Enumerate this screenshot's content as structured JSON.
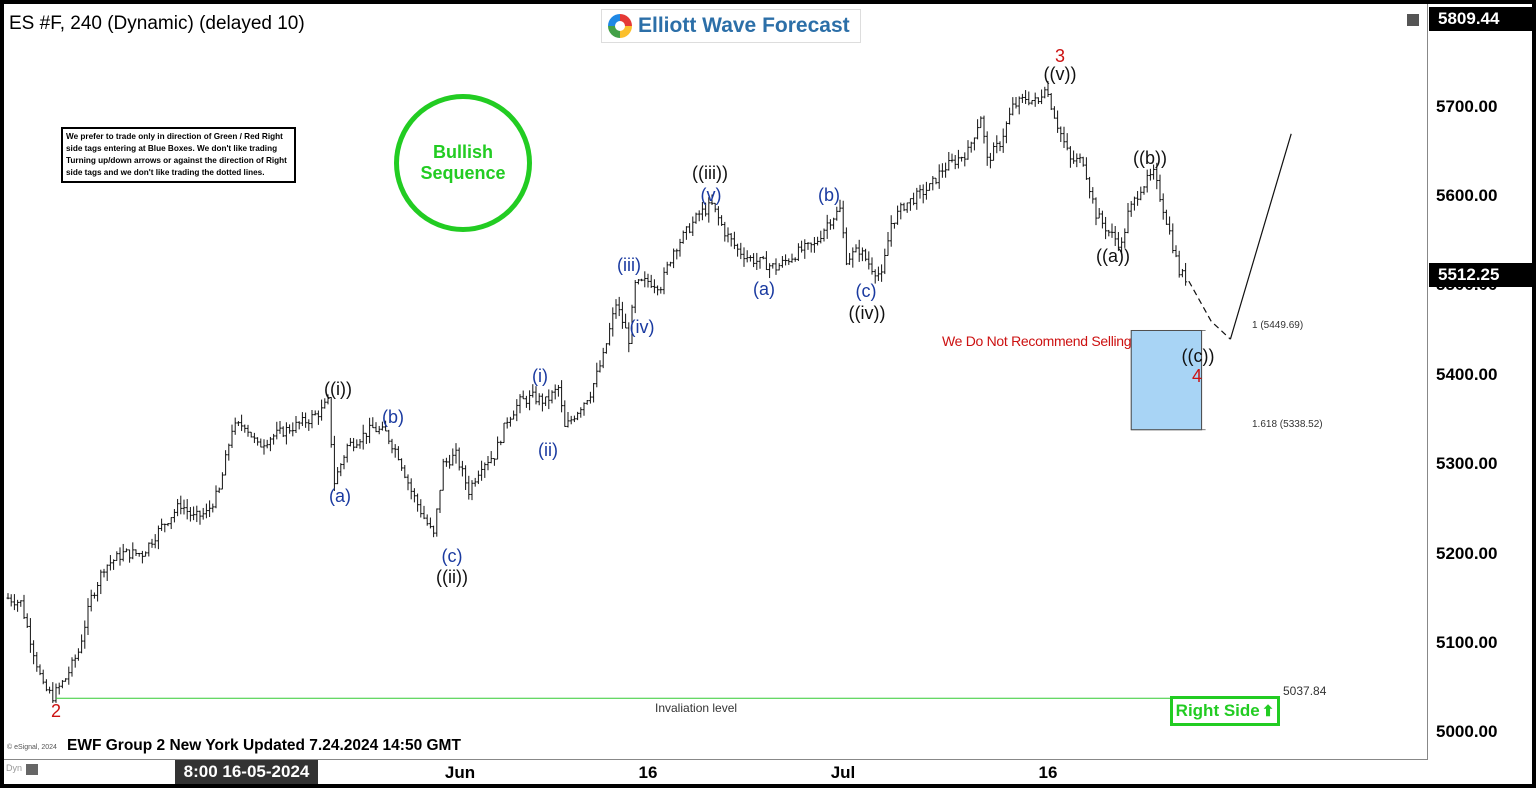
{
  "header": {
    "symbol_title": "ES #F, 240 (Dynamic) (delayed 10)",
    "logo_text": "Elliott Wave Forecast",
    "top_price": "5809.44",
    "last_price": "5512.25"
  },
  "disclaimer": "We prefer to trade only in direction of Green / Red Right side tags entering at Blue Boxes. We don't like trading Turning up/down arrows or against the direction of Right side tags and we don't like trading the dotted lines.",
  "bullish_badge": {
    "line1": "Bullish",
    "line2": "Sequence",
    "color": "#22cc22"
  },
  "no_sell_text": "We Do Not Recommend Selling",
  "fib_labels": {
    "upper": "1 (5449.69)",
    "lower": "1.618 (5338.52)"
  },
  "invalidation": {
    "label": "Invaliation level",
    "value": "5037.84"
  },
  "right_side_tag": {
    "text": "Right Side",
    "arrow": "⬆",
    "color": "#22cc22"
  },
  "footer": {
    "group_text": "EWF Group 2 New York Updated 7.24.2024 14:50 GMT",
    "esignal": "© eSignal, 2024",
    "dyn": "Dyn",
    "time_cursor": "8:00 16-05-2024"
  },
  "wave_labels": {
    "w2": "2",
    "w3": "3",
    "w4": "4",
    "i_big": "((i))",
    "ii_big": "((ii))",
    "iii_big": "((iii))",
    "iv_big": "((iv))",
    "v_big": "((v))",
    "a_big": "((a))",
    "b_big": "((b))",
    "c_big": "((c))",
    "a1": "(a)",
    "b1": "(b)",
    "c1": "(c)",
    "i_small": "(i)",
    "ii_small": "(ii)",
    "iii_small": "(iii)",
    "iv_small": "(iv)",
    "v_small": "(v)",
    "a2": "(a)",
    "b2": "(b)",
    "c2": "(c)"
  },
  "chart_data": {
    "type": "bar",
    "symbol": "ES #F",
    "timeframe": "240",
    "x_ticks": [
      "Jun",
      "16",
      "Jul",
      "16"
    ],
    "y_ticks": [
      "5700.00",
      "5600.00",
      "5500.00",
      "5400.00",
      "5300.00",
      "5200.00",
      "5100.00",
      "5000.00"
    ],
    "ylim": [
      4970,
      5820
    ],
    "price_path": [
      [
        0,
        5150
      ],
      [
        4,
        5145
      ],
      [
        8,
        5090
      ],
      [
        11,
        5050
      ],
      [
        14,
        5040
      ],
      [
        18,
        5060
      ],
      [
        22,
        5090
      ],
      [
        26,
        5150
      ],
      [
        30,
        5185
      ],
      [
        36,
        5200
      ],
      [
        42,
        5200
      ],
      [
        48,
        5230
      ],
      [
        54,
        5255
      ],
      [
        58,
        5240
      ],
      [
        62,
        5245
      ],
      [
        66,
        5270
      ],
      [
        70,
        5340
      ],
      [
        74,
        5345
      ],
      [
        78,
        5320
      ],
      [
        82,
        5330
      ],
      [
        88,
        5340
      ],
      [
        94,
        5350
      ],
      [
        98,
        5360
      ],
      [
        100,
        5370
      ],
      [
        102,
        5280
      ],
      [
        106,
        5320
      ],
      [
        110,
        5330
      ],
      [
        114,
        5340
      ],
      [
        118,
        5335
      ],
      [
        122,
        5310
      ],
      [
        126,
        5270
      ],
      [
        130,
        5240
      ],
      [
        133,
        5220
      ],
      [
        136,
        5300
      ],
      [
        140,
        5310
      ],
      [
        144,
        5270
      ],
      [
        148,
        5300
      ],
      [
        152,
        5310
      ],
      [
        156,
        5350
      ],
      [
        160,
        5370
      ],
      [
        164,
        5375
      ],
      [
        168,
        5370
      ],
      [
        172,
        5385
      ],
      [
        174,
        5340
      ],
      [
        178,
        5360
      ],
      [
        182,
        5380
      ],
      [
        186,
        5420
      ],
      [
        190,
        5480
      ],
      [
        194,
        5440
      ],
      [
        196,
        5500
      ],
      [
        200,
        5505
      ],
      [
        204,
        5500
      ],
      [
        208,
        5540
      ],
      [
        212,
        5560
      ],
      [
        216,
        5580
      ],
      [
        220,
        5590
      ],
      [
        224,
        5560
      ],
      [
        228,
        5540
      ],
      [
        232,
        5530
      ],
      [
        236,
        5525
      ],
      [
        240,
        5520
      ],
      [
        244,
        5530
      ],
      [
        248,
        5540
      ],
      [
        252,
        5545
      ],
      [
        256,
        5570
      ],
      [
        260,
        5585
      ],
      [
        262,
        5530
      ],
      [
        266,
        5540
      ],
      [
        270,
        5520
      ],
      [
        273,
        5510
      ],
      [
        276,
        5570
      ],
      [
        280,
        5590
      ],
      [
        284,
        5600
      ],
      [
        288,
        5610
      ],
      [
        292,
        5630
      ],
      [
        296,
        5640
      ],
      [
        300,
        5650
      ],
      [
        304,
        5690
      ],
      [
        306,
        5640
      ],
      [
        310,
        5660
      ],
      [
        314,
        5700
      ],
      [
        318,
        5710
      ],
      [
        322,
        5705
      ],
      [
        324,
        5725
      ],
      [
        328,
        5680
      ],
      [
        332,
        5640
      ],
      [
        336,
        5640
      ],
      [
        340,
        5580
      ],
      [
        344,
        5560
      ],
      [
        348,
        5545
      ],
      [
        350,
        5580
      ],
      [
        354,
        5610
      ],
      [
        358,
        5625
      ],
      [
        360,
        5600
      ],
      [
        363,
        5560
      ],
      [
        366,
        5515
      ],
      [
        369,
        5505
      ]
    ],
    "projection_path": [
      [
        369,
        5505
      ],
      [
        376,
        5460
      ],
      [
        382,
        5440
      ]
    ],
    "projection_up": [
      [
        382,
        5440
      ],
      [
        401,
        5670
      ]
    ],
    "blue_box": {
      "x_from": 351,
      "x_to": 373,
      "y_top": 5449.69,
      "y_bottom": 5338.52
    },
    "invalidation_level": 5037.84,
    "fib_levels": [
      {
        "ratio": "1",
        "value": 5449.69
      },
      {
        "ratio": "1.618",
        "value": 5338.52
      }
    ],
    "current_price": 5512.25,
    "top_price": 5809.44
  }
}
